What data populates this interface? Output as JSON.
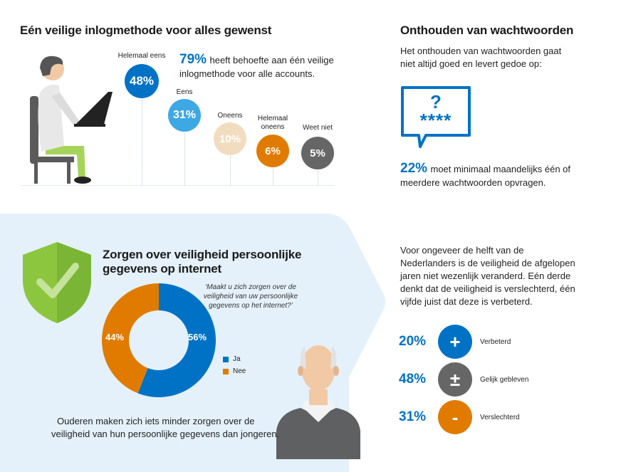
{
  "section1": {
    "title": "Eén veilige inlogmethode voor alles gewenst",
    "highlight_pct": "79%",
    "highlight_text_1": "heeft behoefte aan één veilige",
    "highlight_text_2": "inlogmethode voor alle accounts."
  },
  "section2": {
    "title": "Onthouden van wachtwoorden",
    "intro_1": "Het onthouden van wachtwoorden gaat",
    "intro_2": "niet altijd goed en levert gedoe op:",
    "icon_question": "?",
    "icon_stars": "****",
    "stat_pct": "22%",
    "stat_text_1": "moet minimaal maandelijks één of",
    "stat_text_2": "meerdere wachtwoorden opvragen."
  },
  "section3": {
    "title_1": "Zorgen over veiligheid persoonlijke",
    "title_2": "gegevens op internet",
    "question_1": "‘Maakt u zich zorgen over de",
    "question_2": "veiligheid van uw persoonlijke",
    "question_3": "gegevens op het internet?’",
    "footer_1": "Ouderen maken zich iets minder zorgen over de",
    "footer_2": "veiligheid van hun persoonlijke gegevens dan jongeren."
  },
  "section4": {
    "text_1": "Voor ongeveer de helft van de",
    "text_2": "Nederlanders is de veiligheid de afgelopen",
    "text_3": "jaren niet wezenlijk veranderd. Eén derde",
    "text_4": "denkt dat de veiligheid is verslechterd, één",
    "text_5": "vijfde juist dat deze is verbeterd.",
    "items": [
      {
        "pct": "20%",
        "symbol": "+",
        "label": "Verbeterd",
        "color": "#0072c6"
      },
      {
        "pct": "48%",
        "symbol": "±",
        "label": "Gelijk gebleven",
        "color": "#666666"
      },
      {
        "pct": "31%",
        "symbol": "-",
        "label": "Verslechterd",
        "color": "#e07b00"
      }
    ]
  },
  "colors": {
    "blue": "#0072c6",
    "light_blue": "#3ea8e5",
    "beige": "#f2dcc0",
    "orange": "#e07b00",
    "grey": "#666666",
    "panel_bg": "#e4f1fa",
    "shield_green": "#8cc63f"
  },
  "icons": [
    "person-at-laptop-icon",
    "speech-bubble-password-icon",
    "shield-check-icon",
    "elderly-man-icon"
  ],
  "chart_data": [
    {
      "type": "bubble",
      "categories": [
        "Helemaal eens",
        "Eens",
        "Oneens",
        "Helemaal oneens",
        "Weet niet"
      ],
      "values": [
        48,
        31,
        10,
        6,
        5
      ],
      "labels": [
        "48%",
        "31%",
        "10%",
        "6%",
        "5%"
      ],
      "colors": [
        "#0072c6",
        "#3ea8e5",
        "#f2dcc0",
        "#e07b00",
        "#666666"
      ]
    },
    {
      "type": "pie",
      "categories": [
        "Ja",
        "Nee"
      ],
      "values": [
        56,
        44
      ],
      "labels": [
        "56%",
        "44%"
      ],
      "colors": [
        "#0072c6",
        "#e07b00"
      ],
      "legend": "right"
    }
  ]
}
